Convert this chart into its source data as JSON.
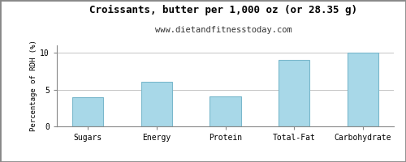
{
  "title": "Croissants, butter per 1,000 oz (or 28.35 g)",
  "subtitle": "www.dietandfitnesstoday.com",
  "categories": [
    "Sugars",
    "Energy",
    "Protein",
    "Total-Fat",
    "Carbohydrate"
  ],
  "values": [
    4.0,
    6.0,
    4.1,
    9.0,
    10.0
  ],
  "bar_color": "#a8d8e8",
  "bar_edge_color": "#7ab8cc",
  "ylabel": "Percentage of RDH (%)",
  "ylim": [
    0,
    11
  ],
  "yticks": [
    0,
    5,
    10
  ],
  "background_color": "#ffffff",
  "plot_bg_color": "#ffffff",
  "grid_color": "#bbbbbb",
  "title_fontsize": 9,
  "subtitle_fontsize": 7.5,
  "axis_label_fontsize": 6.5,
  "tick_fontsize": 7,
  "border_color": "#888888",
  "bar_width": 0.45
}
